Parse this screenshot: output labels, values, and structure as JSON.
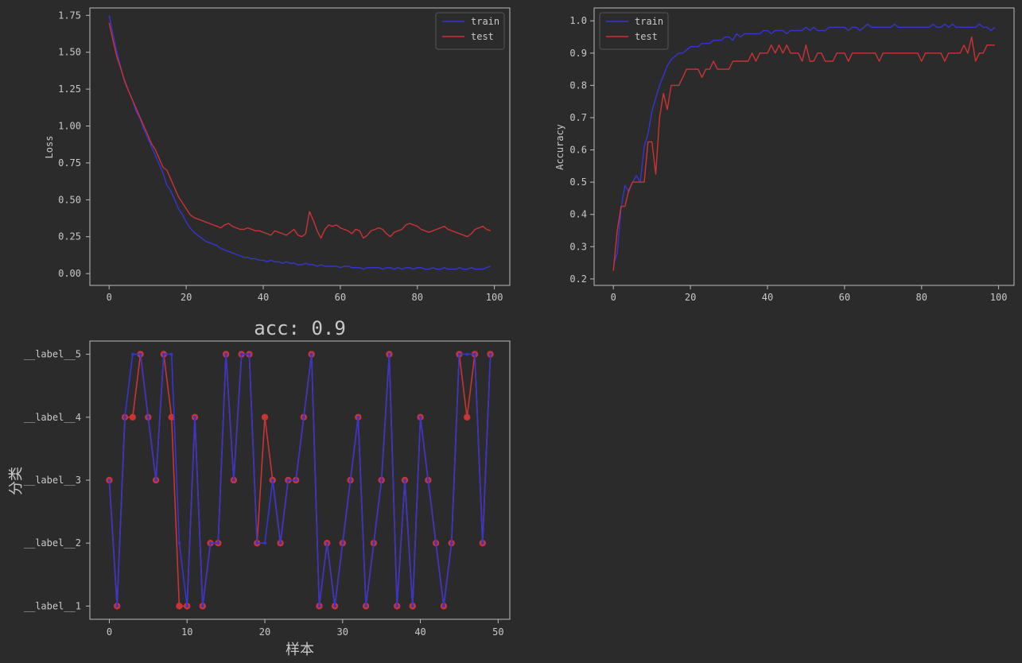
{
  "colors": {
    "background": "#2b2b2b",
    "frame": "#bbbbbb",
    "text": "#c8c8c8",
    "train": "#3535d0",
    "test": "#cc3333"
  },
  "chart_data": [
    {
      "id": "loss",
      "type": "line",
      "title": "",
      "xlabel": "",
      "ylabel": "Loss",
      "xlim": [
        -5,
        104
      ],
      "ylim": [
        -0.08,
        1.8
      ],
      "xticks": [
        0,
        20,
        40,
        60,
        80,
        100
      ],
      "yticks": [
        0,
        0.25,
        0.5,
        0.75,
        1.0,
        1.25,
        1.5,
        1.75
      ],
      "ytick_labels": [
        "0.00",
        "0.25",
        "0.50",
        "0.75",
        "1.00",
        "1.25",
        "1.50",
        "1.75"
      ],
      "legend": "top-right",
      "series": [
        {
          "name": "train",
          "color": "#3535d0",
          "values": [
            1.75,
            1.62,
            1.5,
            1.4,
            1.3,
            1.24,
            1.18,
            1.1,
            1.05,
            0.98,
            0.92,
            0.86,
            0.8,
            0.74,
            0.68,
            0.6,
            0.56,
            0.5,
            0.44,
            0.4,
            0.35,
            0.31,
            0.28,
            0.26,
            0.24,
            0.22,
            0.21,
            0.2,
            0.19,
            0.17,
            0.16,
            0.15,
            0.14,
            0.13,
            0.12,
            0.11,
            0.11,
            0.1,
            0.1,
            0.09,
            0.09,
            0.08,
            0.09,
            0.08,
            0.08,
            0.07,
            0.08,
            0.07,
            0.07,
            0.06,
            0.06,
            0.07,
            0.06,
            0.06,
            0.05,
            0.06,
            0.05,
            0.05,
            0.05,
            0.05,
            0.04,
            0.05,
            0.05,
            0.04,
            0.04,
            0.04,
            0.03,
            0.04,
            0.04,
            0.04,
            0.04,
            0.03,
            0.04,
            0.04,
            0.03,
            0.04,
            0.03,
            0.04,
            0.04,
            0.03,
            0.04,
            0.04,
            0.03,
            0.03,
            0.04,
            0.03,
            0.03,
            0.04,
            0.03,
            0.03,
            0.03,
            0.04,
            0.03,
            0.03,
            0.04,
            0.03,
            0.03,
            0.03,
            0.04,
            0.05
          ]
        },
        {
          "name": "test",
          "color": "#cc3333",
          "values": [
            1.7,
            1.58,
            1.47,
            1.39,
            1.31,
            1.24,
            1.18,
            1.12,
            1.06,
            1.0,
            0.94,
            0.88,
            0.84,
            0.78,
            0.72,
            0.7,
            0.64,
            0.58,
            0.52,
            0.48,
            0.44,
            0.4,
            0.38,
            0.37,
            0.36,
            0.35,
            0.34,
            0.33,
            0.32,
            0.31,
            0.33,
            0.34,
            0.32,
            0.31,
            0.3,
            0.3,
            0.31,
            0.3,
            0.29,
            0.29,
            0.28,
            0.27,
            0.26,
            0.29,
            0.28,
            0.27,
            0.26,
            0.28,
            0.3,
            0.26,
            0.25,
            0.27,
            0.42,
            0.36,
            0.29,
            0.24,
            0.3,
            0.33,
            0.32,
            0.33,
            0.31,
            0.3,
            0.29,
            0.27,
            0.3,
            0.29,
            0.24,
            0.26,
            0.29,
            0.3,
            0.31,
            0.3,
            0.27,
            0.25,
            0.28,
            0.29,
            0.3,
            0.33,
            0.34,
            0.33,
            0.32,
            0.3,
            0.29,
            0.28,
            0.29,
            0.3,
            0.31,
            0.32,
            0.3,
            0.29,
            0.28,
            0.27,
            0.26,
            0.25,
            0.27,
            0.3,
            0.31,
            0.32,
            0.3,
            0.29
          ]
        }
      ]
    },
    {
      "id": "accuracy",
      "type": "line",
      "title": "",
      "xlabel": "",
      "ylabel": "Accuracy",
      "xlim": [
        -5,
        104
      ],
      "ylim": [
        0.18,
        1.04
      ],
      "xticks": [
        0,
        20,
        40,
        60,
        80,
        100
      ],
      "yticks": [
        0.2,
        0.3,
        0.4,
        0.5,
        0.6,
        0.7,
        0.8,
        0.9,
        1.0
      ],
      "ytick_labels": [
        "0.2",
        "0.3",
        "0.4",
        "0.5",
        "0.6",
        "0.7",
        "0.8",
        "0.9",
        "1.0"
      ],
      "legend": "top-left",
      "series": [
        {
          "name": "train",
          "color": "#3535d0",
          "values": [
            0.24,
            0.28,
            0.42,
            0.49,
            0.47,
            0.5,
            0.52,
            0.5,
            0.61,
            0.65,
            0.72,
            0.76,
            0.8,
            0.83,
            0.86,
            0.88,
            0.89,
            0.9,
            0.9,
            0.91,
            0.92,
            0.92,
            0.92,
            0.93,
            0.93,
            0.93,
            0.94,
            0.94,
            0.94,
            0.95,
            0.95,
            0.94,
            0.96,
            0.95,
            0.96,
            0.96,
            0.96,
            0.96,
            0.96,
            0.97,
            0.97,
            0.96,
            0.97,
            0.97,
            0.97,
            0.96,
            0.97,
            0.97,
            0.97,
            0.97,
            0.98,
            0.97,
            0.98,
            0.97,
            0.97,
            0.97,
            0.98,
            0.98,
            0.98,
            0.98,
            0.98,
            0.97,
            0.98,
            0.98,
            0.97,
            0.98,
            0.99,
            0.98,
            0.98,
            0.98,
            0.98,
            0.98,
            0.98,
            0.99,
            0.98,
            0.98,
            0.98,
            0.98,
            0.98,
            0.98,
            0.98,
            0.98,
            0.98,
            0.99,
            0.98,
            0.98,
            0.99,
            0.98,
            0.99,
            0.98,
            0.98,
            0.98,
            0.98,
            0.98,
            0.98,
            0.99,
            0.98,
            0.98,
            0.97,
            0.98
          ]
        },
        {
          "name": "test",
          "color": "#cc3333",
          "values": [
            0.225,
            0.35,
            0.425,
            0.425,
            0.475,
            0.5,
            0.5,
            0.5,
            0.5,
            0.625,
            0.625,
            0.525,
            0.7,
            0.775,
            0.725,
            0.8,
            0.8,
            0.8,
            0.825,
            0.85,
            0.85,
            0.85,
            0.85,
            0.825,
            0.85,
            0.85,
            0.875,
            0.85,
            0.85,
            0.85,
            0.85,
            0.875,
            0.875,
            0.875,
            0.875,
            0.875,
            0.9,
            0.875,
            0.9,
            0.9,
            0.9,
            0.925,
            0.9,
            0.925,
            0.9,
            0.925,
            0.9,
            0.9,
            0.9,
            0.875,
            0.925,
            0.875,
            0.875,
            0.9,
            0.9,
            0.875,
            0.875,
            0.875,
            0.9,
            0.9,
            0.9,
            0.875,
            0.9,
            0.9,
            0.9,
            0.9,
            0.9,
            0.9,
            0.9,
            0.875,
            0.9,
            0.9,
            0.9,
            0.9,
            0.9,
            0.9,
            0.9,
            0.9,
            0.9,
            0.9,
            0.875,
            0.9,
            0.9,
            0.9,
            0.9,
            0.9,
            0.875,
            0.9,
            0.9,
            0.9,
            0.9,
            0.925,
            0.9,
            0.95,
            0.875,
            0.9,
            0.9,
            0.925,
            0.925,
            0.925
          ]
        }
      ]
    },
    {
      "id": "samples",
      "type": "line",
      "title": "acc: 0.9",
      "xlabel": "样本",
      "ylabel": "分类",
      "xlim": [
        -2.5,
        51.5
      ],
      "ylim": [
        0.79,
        5.21
      ],
      "xticks": [
        0,
        10,
        20,
        30,
        40,
        50
      ],
      "yticks": [
        1,
        2,
        3,
        4,
        5
      ],
      "ytick_labels": [
        "__label__1",
        "__label__2",
        "__label__3",
        "__label__4",
        "__label__5"
      ],
      "legend": "none",
      "series": [
        {
          "name": "",
          "color": "#cc3333",
          "marker": "circle",
          "values": [
            3,
            1,
            4,
            4,
            5,
            4,
            3,
            5,
            4,
            1,
            1,
            4,
            1,
            2,
            2,
            5,
            3,
            5,
            5,
            2,
            4,
            3,
            2,
            3,
            3,
            4,
            5,
            1,
            2,
            1,
            2,
            3,
            4,
            1,
            2,
            3,
            5,
            1,
            3,
            1,
            4,
            3,
            2,
            1,
            2,
            5,
            4,
            5,
            2,
            5
          ]
        },
        {
          "name": "",
          "color": "#3535d0",
          "marker": "dot",
          "values": [
            3,
            1,
            4,
            5,
            5,
            4,
            3,
            5,
            5,
            2,
            1,
            4,
            1,
            2,
            2,
            5,
            3,
            5,
            5,
            2,
            2,
            3,
            2,
            3,
            3,
            4,
            5,
            1,
            2,
            1,
            2,
            3,
            4,
            1,
            2,
            3,
            5,
            1,
            3,
            1,
            4,
            3,
            2,
            1,
            2,
            5,
            5,
            5,
            2,
            5
          ]
        }
      ]
    }
  ]
}
